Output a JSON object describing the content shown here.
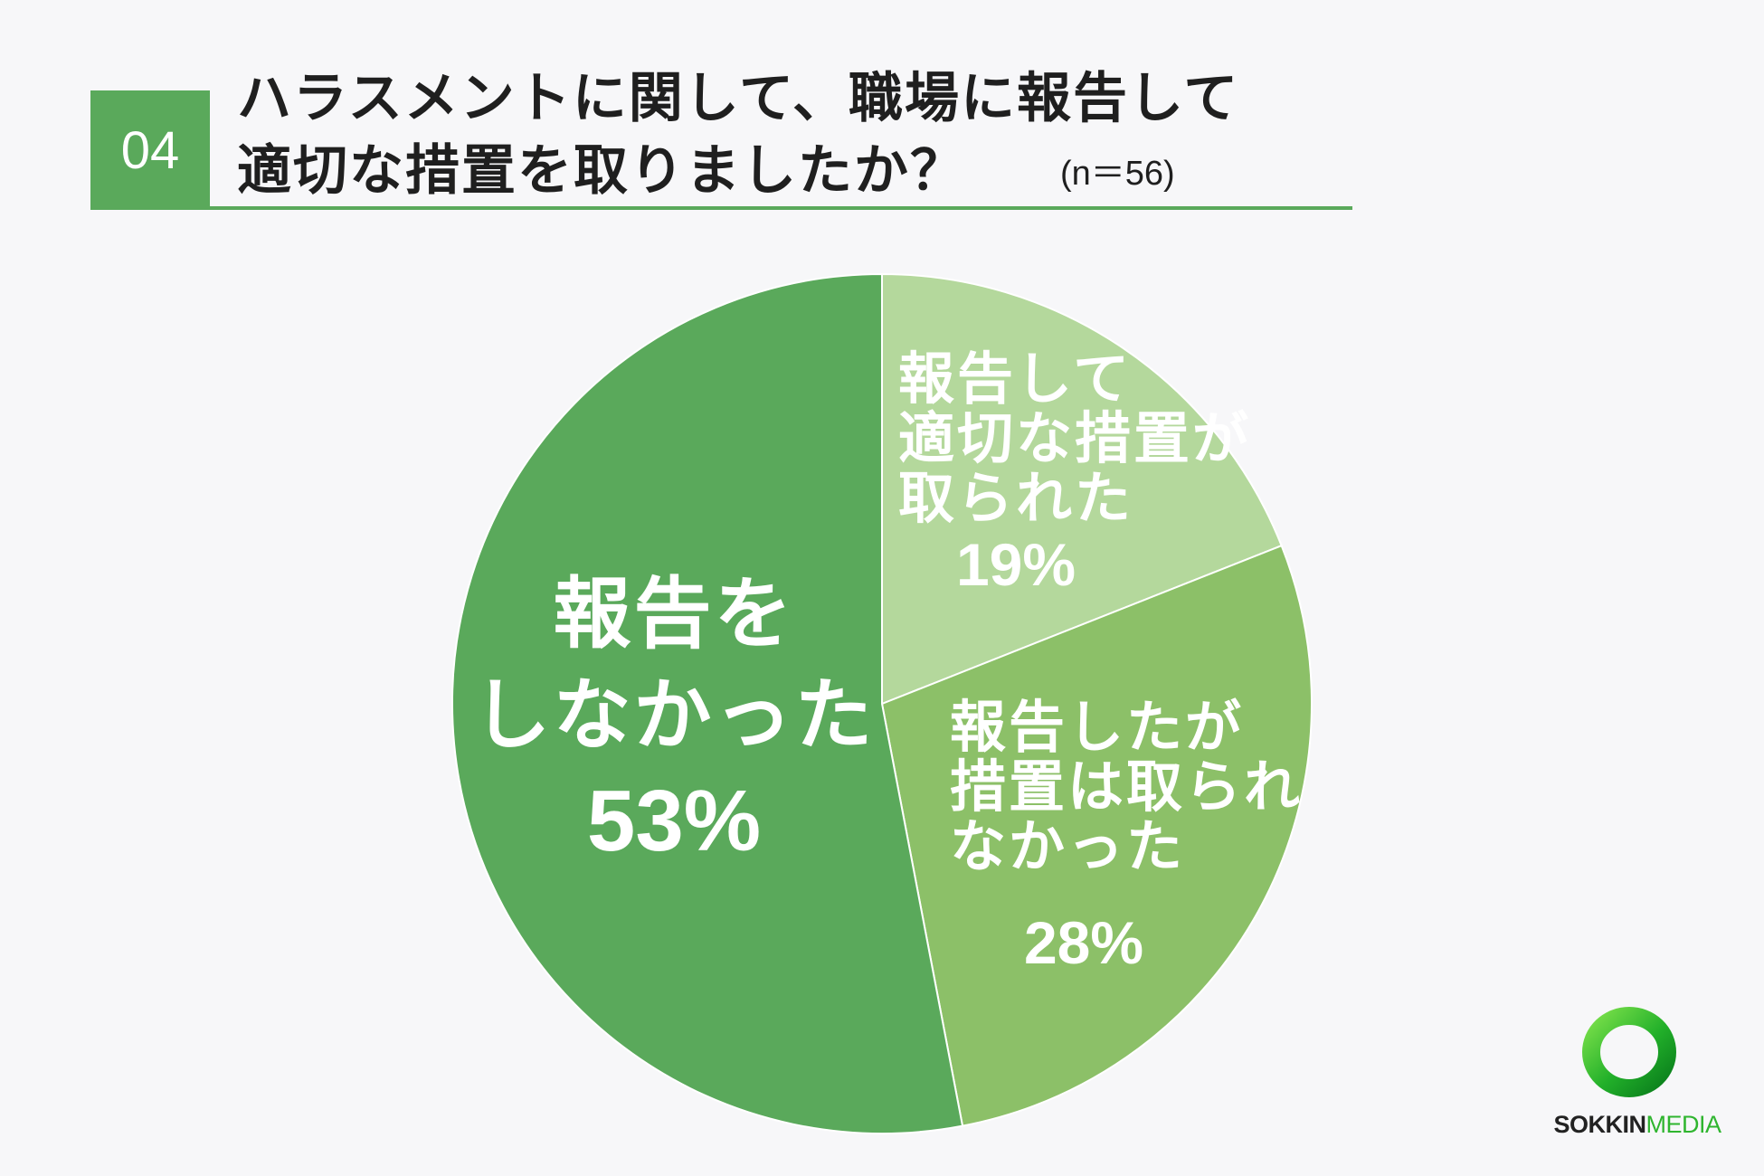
{
  "header": {
    "badge": "04",
    "title_line1": "ハラスメントに関して、職場に報告して",
    "title_line2": "適切な措置を取りましたか？",
    "n_note": "(n＝56)"
  },
  "colors": {
    "accent": "#5aa95b",
    "slice_dark": "#5aa95b",
    "slice_medium": "#8cc068",
    "slice_light": "#b4d89c",
    "slice_border": "#ffffff",
    "label_text": "#ffffff"
  },
  "chart_data": {
    "type": "pie",
    "start": "12 o'clock",
    "direction": "clockwise",
    "slices": [
      {
        "label_lines": [
          "報告して",
          "適切な措置が",
          "取られた"
        ],
        "value": 19,
        "value_label": "19%",
        "color": "#b4d89c"
      },
      {
        "label_lines": [
          "報告したが",
          "措置は取られ",
          "なかった"
        ],
        "value": 28,
        "value_label": "28%",
        "color": "#8cc068"
      },
      {
        "label_lines": [
          "報告を",
          "しなかった"
        ],
        "value": 53,
        "value_label": "53%",
        "color": "#5aa95b"
      }
    ]
  },
  "logo": {
    "text_bold": "SOKKIN",
    "text_light": "MEDIA",
    "icon": "ring-logo-icon"
  }
}
